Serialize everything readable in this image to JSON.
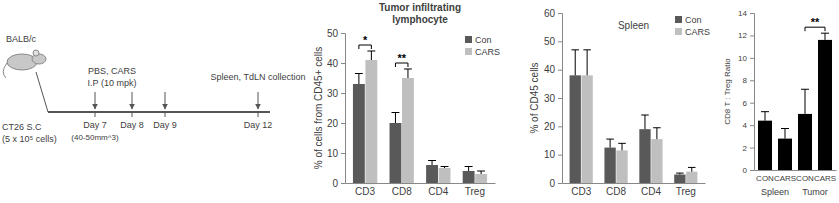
{
  "diagram": {
    "mouse": "BALB/c",
    "injection": [
      "CT26 S.C",
      "(5 x 10⁵ cells)"
    ],
    "treatment": [
      "PBS, CARS",
      "I.P (10 mpk)"
    ],
    "days": [
      "Day 7",
      "Day 8",
      "Day 9",
      "Day 12"
    ],
    "day_note": "(40-50mm^3)",
    "collection": "Spleen, TdLN collection"
  },
  "chart_data": [
    {
      "type": "bar",
      "title": "Tumor infiltrating lymphocyte",
      "y_label": "% of cells from CD45+ cells",
      "categories": [
        "CD3",
        "CD8",
        "CD4",
        "Treg"
      ],
      "series": [
        {
          "name": "Con",
          "color": "#595959",
          "values": [
            33,
            20,
            6,
            4
          ],
          "errors": [
            3.5,
            3.5,
            1.5,
            1.5
          ]
        },
        {
          "name": "CARS",
          "color": "#bfbfbf",
          "values": [
            41,
            35,
            5,
            3
          ],
          "errors": [
            3,
            3,
            0.5,
            1
          ]
        }
      ],
      "ylim": [
        0,
        50
      ],
      "yticks": [
        0,
        10,
        20,
        30,
        40,
        50
      ],
      "legend": "upper right",
      "annotations": [
        {
          "text": "*",
          "category": 0
        },
        {
          "text": "**",
          "category": 1
        }
      ]
    },
    {
      "type": "bar",
      "title": "Spleen",
      "y_label": "% of CD45 cells",
      "categories": [
        "CD3",
        "CD8",
        "CD4",
        "Treg"
      ],
      "series": [
        {
          "name": "Con",
          "color": "#595959",
          "values": [
            38,
            12.5,
            19,
            3
          ],
          "errors": [
            9,
            3,
            5,
            0.5
          ]
        },
        {
          "name": "CARS",
          "color": "#bfbfbf",
          "values": [
            38,
            11.5,
            15.5,
            4
          ],
          "errors": [
            9,
            2.5,
            4,
            1.5
          ]
        }
      ],
      "ylim": [
        0,
        60
      ],
      "yticks": [
        0,
        10,
        20,
        30,
        40,
        50,
        60
      ],
      "legend": "upper right"
    },
    {
      "type": "bar",
      "y_label": "CD8 T : Treg Ratio",
      "categories": [
        "CON",
        "CARS",
        "CON",
        "CARS"
      ],
      "values": [
        4.4,
        2.8,
        5,
        11.6
      ],
      "errors": [
        0.8,
        0.9,
        2.2,
        0.6
      ],
      "color": "#000000",
      "ylim": [
        0,
        14
      ],
      "yticks": [
        0,
        2,
        4,
        6,
        8,
        10,
        12,
        14
      ],
      "groups": [
        {
          "label": "Spleen",
          "categories": [
            0,
            1
          ]
        },
        {
          "label": "Tumor",
          "categories": [
            2,
            3
          ]
        }
      ],
      "annotations": [
        {
          "text": "**",
          "categories": [
            2,
            3
          ]
        }
      ]
    }
  ]
}
